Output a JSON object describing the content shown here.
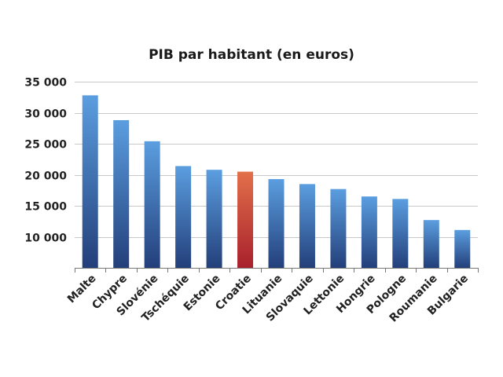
{
  "chart_data": {
    "type": "bar",
    "title": "PIB par habitant (en euros)",
    "xlabel": "",
    "ylabel": "",
    "categories": [
      "Malte",
      "Chypre",
      "Slovénie",
      "Tschéquie",
      "Estonie",
      "Croatie",
      "Lituanie",
      "Slovaquie",
      "Lettonie",
      "Hongrie",
      "Pologne",
      "Roumanie",
      "Bulgarie"
    ],
    "values": [
      32800,
      28800,
      25400,
      21400,
      20800,
      20500,
      19300,
      18500,
      17700,
      16500,
      16100,
      12700,
      11100
    ],
    "highlight": "Croatie",
    "ylim": [
      5000,
      35000
    ],
    "yticks": [
      10000,
      15000,
      20000,
      25000,
      30000,
      35000
    ],
    "ytick_labels": [
      "10 000",
      "15 000",
      "20 000",
      "25 000",
      "30 000",
      "35 000"
    ],
    "grid": true,
    "colors": {
      "bar_top": "#5b9ee0",
      "bar_bottom": "#233f7a",
      "highlight_top": "#e2704a",
      "highlight_bottom": "#a8202c",
      "grid": "#c8c8c8"
    }
  }
}
